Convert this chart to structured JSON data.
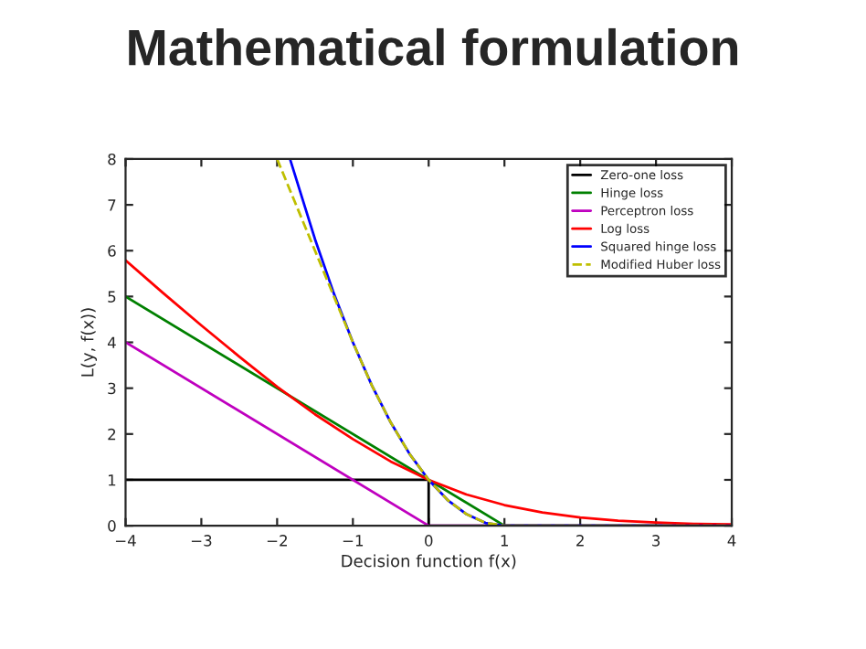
{
  "chart_data": {
    "type": "line",
    "title": "Mathematical formulation",
    "xlabel": "Decision function f(x)",
    "ylabel": "L(y, f(x))",
    "xlim": [
      -4,
      4
    ],
    "ylim": [
      0,
      8
    ],
    "xticks": [
      {
        "value": -4,
        "label": "−4"
      },
      {
        "value": -3,
        "label": "−3"
      },
      {
        "value": -2,
        "label": "−2"
      },
      {
        "value": -1,
        "label": "−1"
      },
      0,
      1,
      2,
      3,
      4
    ],
    "yticks": [
      0,
      1,
      2,
      3,
      4,
      5,
      6,
      7,
      8
    ],
    "grid": false,
    "legend": "top right",
    "marker": "none",
    "series": [
      {
        "name": "Zero-one loss",
        "color": "#000000",
        "line_style": "solid",
        "x": [
          -4,
          0,
          0,
          4
        ],
        "values": [
          1,
          1,
          0,
          0
        ]
      },
      {
        "name": "Hinge loss",
        "color": "#008000",
        "line_style": "solid",
        "x": [
          -4,
          1,
          4
        ],
        "values": [
          5,
          0,
          0
        ]
      },
      {
        "name": "Perceptron loss",
        "color": "#bf00bf",
        "line_style": "solid",
        "x": [
          -4,
          0,
          4
        ],
        "values": [
          4,
          0,
          0
        ]
      },
      {
        "name": "Log loss",
        "color": "#ff0000",
        "line_style": "solid",
        "x": [
          -4,
          -3.5,
          -3,
          -2.5,
          -2,
          -1.5,
          -1,
          -0.5,
          0,
          0.5,
          1,
          1.5,
          2,
          2.5,
          3,
          3.5,
          4
        ],
        "values": [
          5.79,
          5.07,
          4.37,
          3.69,
          3.03,
          2.43,
          1.89,
          1.4,
          1,
          0.68,
          0.45,
          0.29,
          0.18,
          0.11,
          0.07,
          0.04,
          0.03
        ]
      },
      {
        "name": "Squared hinge loss",
        "color": "#0000ff",
        "line_style": "solid",
        "x": [
          -1.83,
          -1.5,
          -1.25,
          -1,
          -0.75,
          -0.5,
          -0.25,
          0,
          0.25,
          0.5,
          0.75,
          1,
          4
        ],
        "values": [
          8,
          6.25,
          5.06,
          4,
          3.06,
          2.25,
          1.56,
          1,
          0.56,
          0.25,
          0.06,
          0,
          0
        ]
      },
      {
        "name": "Modified Huber loss",
        "color": "#bfbf00",
        "line_style": "dashed",
        "x": [
          -2,
          -1.5,
          -1,
          -0.75,
          -0.5,
          -0.25,
          0,
          0.25,
          0.5,
          0.75,
          1,
          4
        ],
        "values": [
          8,
          6,
          4,
          3.06,
          2.25,
          1.56,
          1,
          0.56,
          0.25,
          0.06,
          0,
          0
        ]
      }
    ]
  }
}
